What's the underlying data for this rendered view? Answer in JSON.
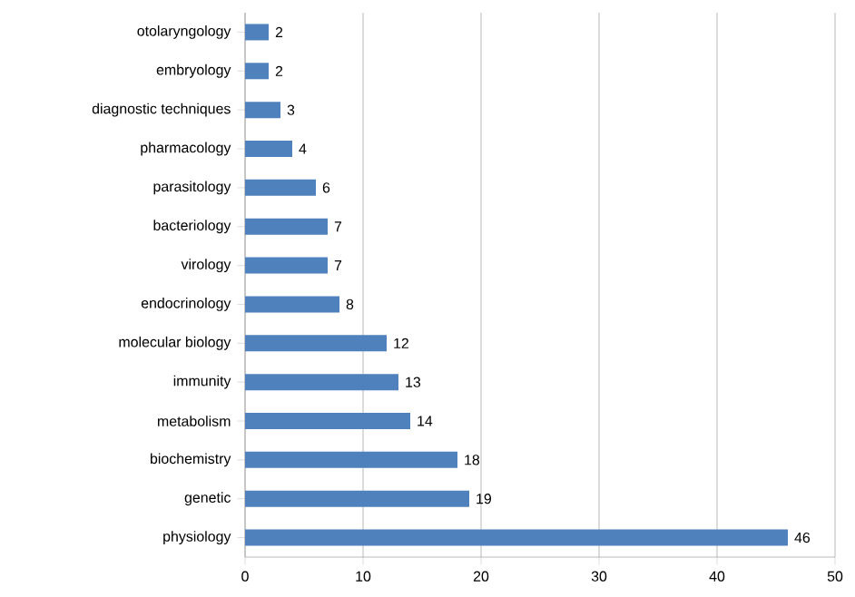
{
  "chart_data": {
    "type": "bar",
    "orientation": "horizontal",
    "categories": [
      "otolaryngology",
      "embryology",
      "diagnostic techniques",
      "pharmacology",
      "parasitology",
      "bacteriology",
      "virology",
      "endocrinology",
      "molecular biology",
      "immunity",
      "metabolism",
      "biochemistry",
      "genetic",
      "physiology"
    ],
    "values": [
      2,
      2,
      3,
      4,
      6,
      7,
      7,
      8,
      12,
      13,
      14,
      18,
      19,
      46
    ],
    "color": "#4f81bd",
    "xlim": [
      0,
      50
    ],
    "xticks": [
      0,
      10,
      20,
      30,
      40,
      50
    ],
    "grid": "x",
    "data_labels": true
  }
}
